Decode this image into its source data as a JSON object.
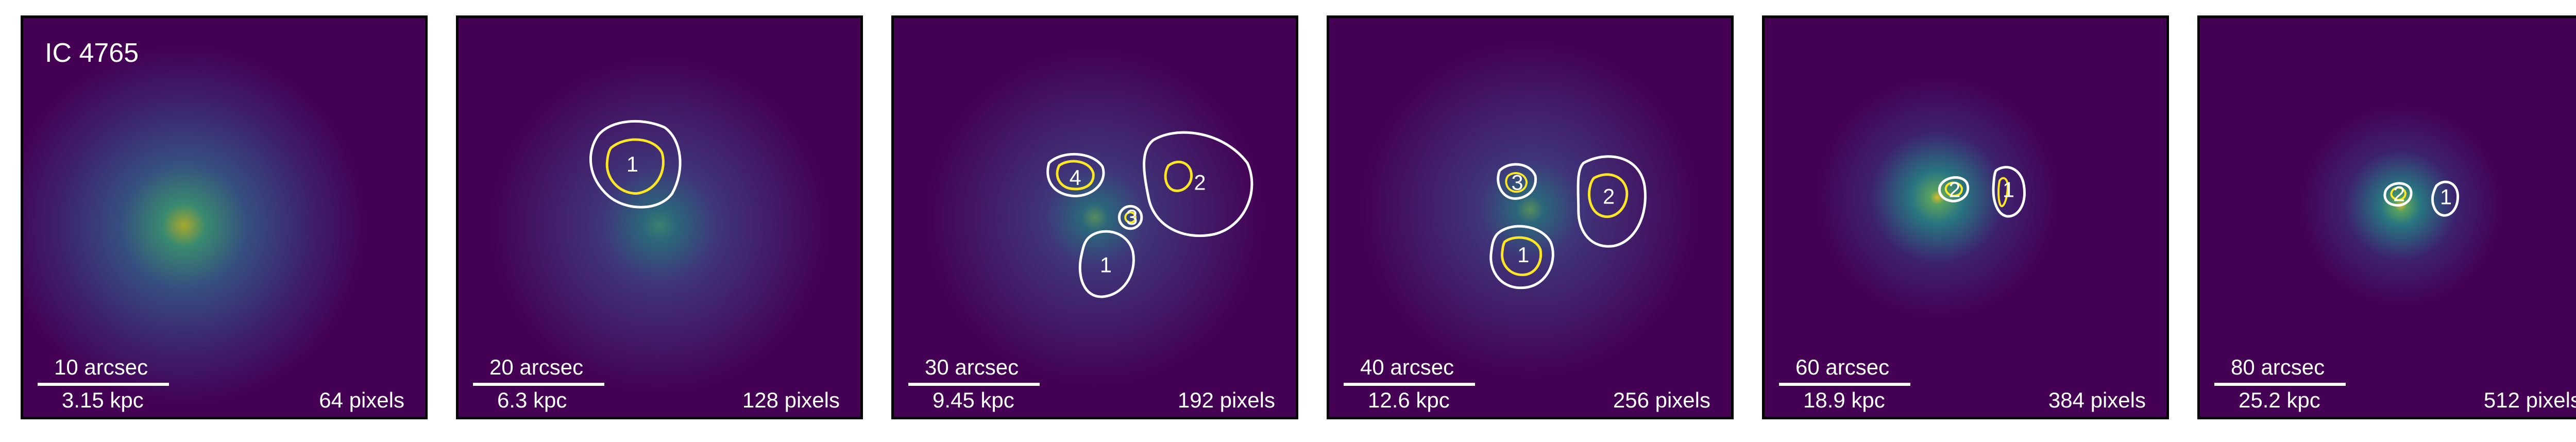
{
  "figure": {
    "title": "IC 4765",
    "panels": [
      {
        "arcsec": "10 arcsec",
        "kpc": "3.15 kpc",
        "pixels": "64 pixels",
        "region_labels": []
      },
      {
        "arcsec": "20 arcsec",
        "kpc": "6.3 kpc",
        "pixels": "128 pixels",
        "region_labels": [
          "1"
        ]
      },
      {
        "arcsec": "30 arcsec",
        "kpc": "9.45 kpc",
        "pixels": "192 pixels",
        "region_labels": [
          "4",
          "2",
          "3",
          "1"
        ]
      },
      {
        "arcsec": "40 arcsec",
        "kpc": "12.6 kpc",
        "pixels": "256 pixels",
        "region_labels": [
          "3",
          "2",
          "1"
        ]
      },
      {
        "arcsec": "60 arcsec",
        "kpc": "18.9 kpc",
        "pixels": "384 pixels",
        "region_labels": [
          "2",
          "1"
        ]
      },
      {
        "arcsec": "80 arcsec",
        "kpc": "25.2 kpc",
        "pixels": "512 pixels",
        "region_labels": [
          "2",
          "1"
        ]
      }
    ]
  },
  "colors": {
    "background": "#440154",
    "contour_outer": "#ffffff",
    "contour_inner": "#fde725",
    "emission_low": "#31688e",
    "emission_high": "#fde725"
  }
}
